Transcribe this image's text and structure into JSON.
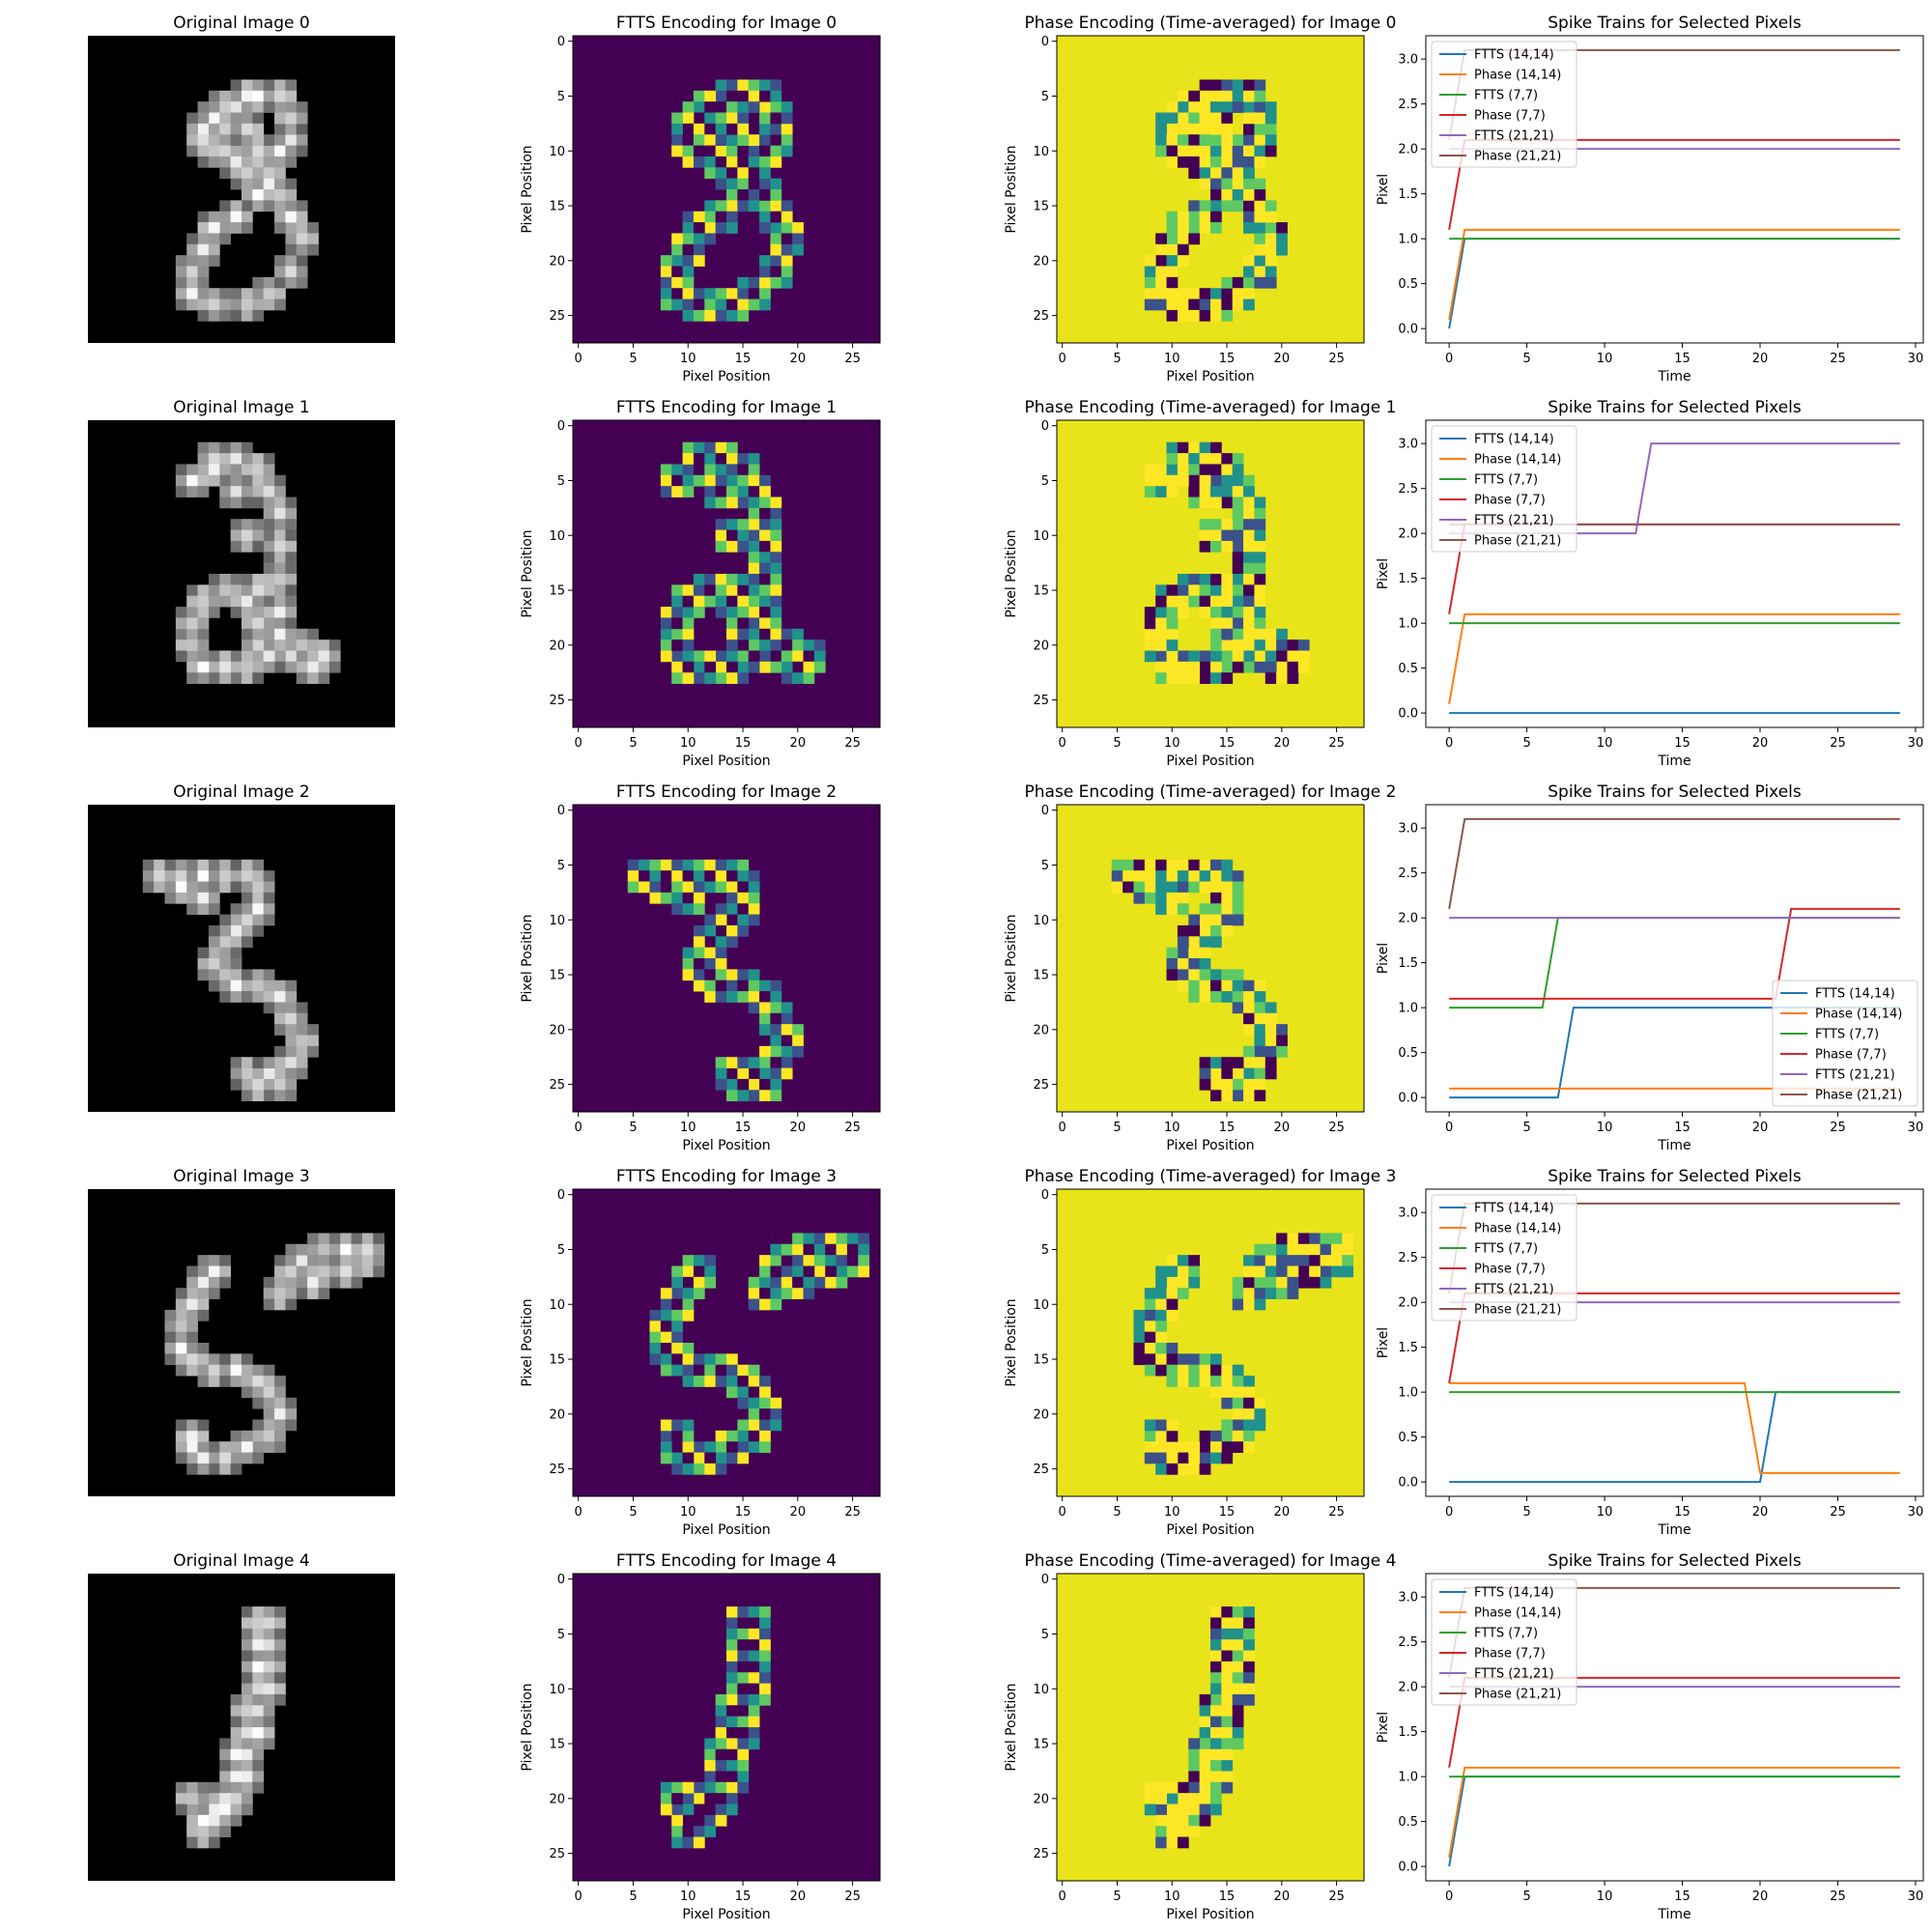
{
  "figure": {
    "rows": 5,
    "cols": 4
  },
  "colors": {
    "viridis_low": "#440154",
    "viridis_mid_dark": "#3b528b",
    "viridis_mid": "#21918c",
    "viridis_mid_light": "#5ec962",
    "viridis_high": "#fde725",
    "series": [
      "#1f77b4",
      "#ff7f0e",
      "#2ca02c",
      "#d62728",
      "#9467bd",
      "#8c564b"
    ]
  },
  "image_axes": {
    "xlabel": "Pixel Position",
    "ylabel": "Pixel Position",
    "ticks": [
      0,
      5,
      10,
      15,
      20,
      25
    ],
    "size": 28,
    "colormap": "viridis"
  },
  "spike_axes": {
    "xlabel": "Time",
    "ylabel": "Pixel",
    "xlim": [
      -1.5,
      30.5
    ],
    "ylim": [
      -0.16,
      3.26
    ],
    "xticks": [
      0,
      5,
      10,
      15,
      20,
      25,
      30
    ],
    "yticks": [
      0.0,
      0.5,
      1.0,
      1.5,
      2.0,
      2.5,
      3.0
    ],
    "legend_names": [
      "FTTS (14,14)",
      "Phase (14,14)",
      "FTTS (7,7)",
      "Phase (7,7)",
      "FTTS (21,21)",
      "Phase (21,21)"
    ]
  },
  "panels": [
    {
      "original_title": "Original Image 0",
      "ftts_title": "FTTS Encoding for Image 0",
      "phase_title": "Phase Encoding (Time-averaged) for Image 0",
      "spike_title": "Spike Trains for Selected Pixels",
      "stroke": [
        [
          14,
          5
        ],
        [
          12,
          6
        ],
        [
          11,
          7
        ],
        [
          10,
          8
        ],
        [
          10,
          9
        ],
        [
          11,
          10
        ],
        [
          13,
          11
        ],
        [
          15,
          11
        ],
        [
          17,
          10
        ],
        [
          18,
          9
        ],
        [
          18,
          7
        ],
        [
          17,
          5
        ],
        [
          15,
          5
        ],
        [
          13,
          6
        ],
        [
          12,
          8
        ],
        [
          12,
          10
        ],
        [
          14,
          12
        ],
        [
          15,
          14
        ],
        [
          13,
          16
        ],
        [
          11,
          17
        ],
        [
          10,
          19
        ],
        [
          9,
          21
        ],
        [
          9,
          23
        ],
        [
          11,
          24
        ],
        [
          14,
          24
        ],
        [
          16,
          23
        ],
        [
          18,
          21
        ],
        [
          19,
          18
        ],
        [
          18,
          16
        ],
        [
          17,
          14
        ],
        [
          16,
          12
        ],
        [
          15,
          10
        ],
        [
          14,
          8
        ],
        [
          16,
          13
        ]
      ]
    },
    {
      "original_title": "Original Image 1",
      "ftts_title": "FTTS Encoding for Image 1",
      "phase_title": "Phase Encoding (Time-averaged) for Image 1",
      "spike_title": "Spike Trains for Selected Pixels",
      "stroke": [
        [
          9,
          5
        ],
        [
          11,
          3
        ],
        [
          13,
          3
        ],
        [
          15,
          4
        ],
        [
          16,
          6
        ],
        [
          17,
          8
        ],
        [
          17,
          11
        ],
        [
          17,
          14
        ],
        [
          17,
          17
        ],
        [
          17,
          19
        ],
        [
          19,
          20
        ],
        [
          21,
          21
        ],
        [
          20,
          22
        ],
        [
          18,
          21
        ],
        [
          16,
          21
        ],
        [
          14,
          22
        ],
        [
          12,
          22
        ],
        [
          10,
          22
        ],
        [
          9,
          20
        ],
        [
          9,
          18
        ],
        [
          10,
          16
        ],
        [
          12,
          15
        ],
        [
          14,
          16
        ],
        [
          15,
          18
        ],
        [
          15,
          20
        ],
        [
          15,
          15
        ],
        [
          14,
          10
        ],
        [
          13,
          6
        ],
        [
          11,
          4
        ]
      ]
    },
    {
      "original_title": "Original Image 2",
      "ftts_title": "FTTS Encoding for Image 2",
      "phase_title": "Phase Encoding (Time-averaged) for Image 2",
      "spike_title": "Spike Trains for Selected Pixels",
      "stroke": [
        [
          6,
          6
        ],
        [
          8,
          6
        ],
        [
          10,
          6
        ],
        [
          12,
          6
        ],
        [
          14,
          6
        ],
        [
          15,
          7
        ],
        [
          15,
          9
        ],
        [
          14,
          10
        ],
        [
          13,
          11
        ],
        [
          12,
          12
        ],
        [
          11,
          14
        ],
        [
          12,
          15
        ],
        [
          13,
          16
        ],
        [
          15,
          16
        ],
        [
          17,
          17
        ],
        [
          18,
          19
        ],
        [
          19,
          21
        ],
        [
          18,
          23
        ],
        [
          17,
          25
        ],
        [
          15,
          25
        ],
        [
          14,
          24
        ],
        [
          16,
          24
        ],
        [
          8,
          7
        ],
        [
          10,
          8
        ]
      ]
    },
    {
      "original_title": "Original Image 3",
      "ftts_title": "FTTS Encoding for Image 3",
      "phase_title": "Phase Encoding (Time-averaged) for Image 3",
      "spike_title": "Spike Trains for Selected Pixels",
      "stroke": [
        [
          11,
          7
        ],
        [
          10,
          8
        ],
        [
          9,
          10
        ],
        [
          8,
          12
        ],
        [
          8,
          14
        ],
        [
          9,
          15
        ],
        [
          11,
          16
        ],
        [
          13,
          16
        ],
        [
          15,
          17
        ],
        [
          16,
          18
        ],
        [
          17,
          20
        ],
        [
          16,
          22
        ],
        [
          14,
          23
        ],
        [
          12,
          24
        ],
        [
          10,
          24
        ],
        [
          9,
          23
        ],
        [
          9,
          22
        ],
        [
          17,
          9
        ],
        [
          18,
          7
        ],
        [
          19,
          6
        ],
        [
          21,
          5
        ],
        [
          23,
          5
        ],
        [
          25,
          5
        ],
        [
          25,
          6
        ],
        [
          23,
          7
        ],
        [
          21,
          7
        ],
        [
          20,
          8
        ]
      ]
    },
    {
      "original_title": "Original Image 4",
      "ftts_title": "FTTS Encoding for Image 4",
      "phase_title": "Phase Encoding (Time-averaged) for Image 4",
      "spike_title": "Spike Trains for Selected Pixels",
      "stroke": [
        [
          15,
          4
        ],
        [
          16,
          4
        ],
        [
          15,
          6
        ],
        [
          16,
          6
        ],
        [
          15,
          8
        ],
        [
          16,
          8
        ],
        [
          15,
          10
        ],
        [
          16,
          10
        ],
        [
          14,
          12
        ],
        [
          15,
          12
        ],
        [
          14,
          14
        ],
        [
          15,
          14
        ],
        [
          13,
          16
        ],
        [
          14,
          16
        ],
        [
          13,
          18
        ],
        [
          14,
          18
        ],
        [
          12,
          20
        ],
        [
          13,
          20
        ],
        [
          11,
          21
        ],
        [
          12,
          21
        ],
        [
          10,
          22
        ],
        [
          11,
          22
        ],
        [
          10,
          23
        ],
        [
          9,
          20
        ]
      ]
    }
  ],
  "chart_data": [
    {
      "type": "line",
      "title": "Spike Trains for Selected Pixels",
      "xlabel": "Time",
      "ylabel": "Pixel",
      "legend_position": "upper-left",
      "series": [
        {
          "name": "FTTS (14,14)",
          "x": [
            0,
            1,
            29
          ],
          "y": [
            0.0,
            1.0,
            1.0
          ]
        },
        {
          "name": "Phase (14,14)",
          "x": [
            0,
            1,
            29
          ],
          "y": [
            0.1,
            1.1,
            1.1
          ]
        },
        {
          "name": "FTTS (7,7)",
          "x": [
            0,
            29
          ],
          "y": [
            1.0,
            1.0
          ]
        },
        {
          "name": "Phase (7,7)",
          "x": [
            0,
            1,
            29
          ],
          "y": [
            1.1,
            2.1,
            2.1
          ]
        },
        {
          "name": "FTTS (21,21)",
          "x": [
            0,
            29
          ],
          "y": [
            2.0,
            2.0
          ]
        },
        {
          "name": "Phase (21,21)",
          "x": [
            0,
            1,
            29
          ],
          "y": [
            2.1,
            3.1,
            3.1
          ]
        }
      ]
    },
    {
      "type": "line",
      "title": "Spike Trains for Selected Pixels",
      "xlabel": "Time",
      "ylabel": "Pixel",
      "legend_position": "upper-left",
      "series": [
        {
          "name": "FTTS (14,14)",
          "x": [
            0,
            29
          ],
          "y": [
            0.0,
            0.0
          ]
        },
        {
          "name": "Phase (14,14)",
          "x": [
            0,
            1,
            29
          ],
          "y": [
            0.1,
            1.1,
            1.1
          ]
        },
        {
          "name": "FTTS (7,7)",
          "x": [
            0,
            29
          ],
          "y": [
            1.0,
            1.0
          ]
        },
        {
          "name": "Phase (7,7)",
          "x": [
            0,
            1,
            29
          ],
          "y": [
            1.1,
            2.1,
            2.1
          ]
        },
        {
          "name": "FTTS (21,21)",
          "x": [
            0,
            12,
            13,
            29
          ],
          "y": [
            2.0,
            2.0,
            3.0,
            3.0
          ]
        },
        {
          "name": "Phase (21,21)",
          "x": [
            0,
            1,
            29
          ],
          "y": [
            2.1,
            2.1,
            2.1
          ]
        }
      ]
    },
    {
      "type": "line",
      "title": "Spike Trains for Selected Pixels",
      "xlabel": "Time",
      "ylabel": "Pixel",
      "legend_position": "lower-right",
      "series": [
        {
          "name": "FTTS (14,14)",
          "x": [
            0,
            7,
            8,
            29
          ],
          "y": [
            0.0,
            0.0,
            1.0,
            1.0
          ]
        },
        {
          "name": "Phase (14,14)",
          "x": [
            0,
            29
          ],
          "y": [
            0.1,
            0.1
          ]
        },
        {
          "name": "FTTS (7,7)",
          "x": [
            0,
            6,
            7,
            29
          ],
          "y": [
            1.0,
            1.0,
            2.0,
            2.0
          ]
        },
        {
          "name": "Phase (7,7)",
          "x": [
            0,
            21,
            22,
            29
          ],
          "y": [
            1.1,
            1.1,
            2.1,
            2.1
          ]
        },
        {
          "name": "FTTS (21,21)",
          "x": [
            0,
            29
          ],
          "y": [
            2.0,
            2.0
          ]
        },
        {
          "name": "Phase (21,21)",
          "x": [
            0,
            1,
            29
          ],
          "y": [
            2.1,
            3.1,
            3.1
          ]
        }
      ]
    },
    {
      "type": "line",
      "title": "Spike Trains for Selected Pixels",
      "xlabel": "Time",
      "ylabel": "Pixel",
      "legend_position": "upper-left",
      "series": [
        {
          "name": "FTTS (14,14)",
          "x": [
            0,
            20,
            21,
            29
          ],
          "y": [
            0.0,
            0.0,
            1.0,
            1.0
          ]
        },
        {
          "name": "Phase (14,14)",
          "x": [
            0,
            19,
            20,
            29
          ],
          "y": [
            1.1,
            1.1,
            0.1,
            0.1
          ]
        },
        {
          "name": "FTTS (7,7)",
          "x": [
            0,
            29
          ],
          "y": [
            1.0,
            1.0
          ]
        },
        {
          "name": "Phase (7,7)",
          "x": [
            0,
            1,
            29
          ],
          "y": [
            1.1,
            2.1,
            2.1
          ]
        },
        {
          "name": "FTTS (21,21)",
          "x": [
            0,
            29
          ],
          "y": [
            2.0,
            2.0
          ]
        },
        {
          "name": "Phase (21,21)",
          "x": [
            0,
            1,
            29
          ],
          "y": [
            2.1,
            3.1,
            3.1
          ]
        }
      ]
    },
    {
      "type": "line",
      "title": "Spike Trains for Selected Pixels",
      "xlabel": "Time",
      "ylabel": "Pixel",
      "legend_position": "upper-left",
      "series": [
        {
          "name": "FTTS (14,14)",
          "x": [
            0,
            1,
            29
          ],
          "y": [
            0.0,
            1.0,
            1.0
          ]
        },
        {
          "name": "Phase (14,14)",
          "x": [
            0,
            1,
            29
          ],
          "y": [
            0.1,
            1.1,
            1.1
          ]
        },
        {
          "name": "FTTS (7,7)",
          "x": [
            0,
            29
          ],
          "y": [
            1.0,
            1.0
          ]
        },
        {
          "name": "Phase (7,7)",
          "x": [
            0,
            1,
            29
          ],
          "y": [
            1.1,
            2.1,
            2.1
          ]
        },
        {
          "name": "FTTS (21,21)",
          "x": [
            0,
            29
          ],
          "y": [
            2.0,
            2.0
          ]
        },
        {
          "name": "Phase (21,21)",
          "x": [
            0,
            1,
            29
          ],
          "y": [
            2.1,
            3.1,
            3.1
          ]
        }
      ]
    }
  ]
}
